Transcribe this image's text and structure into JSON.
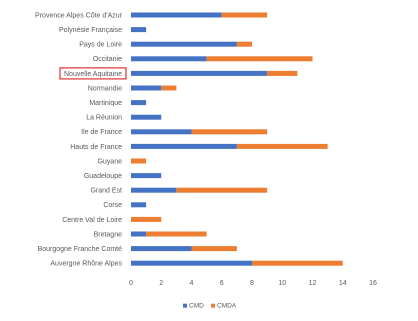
{
  "chart_data": {
    "type": "bar",
    "orientation": "horizontal",
    "stacked": true,
    "categories": [
      "Provence Alpes Côte d'Azur",
      "Polynésie Française",
      "Pays de Loire",
      "Occitanie",
      "Nouvelle Aquitaine",
      "Normandie",
      "Martinique",
      "La Réunion",
      "Ile de France",
      "Hauts de France",
      "Guyane",
      "Guadeloupe",
      "Grand Est",
      "Corse",
      "Centre Val de Loire",
      "Bretagne",
      "Bourgogne Franche Comté",
      "Auvergne Rhône Alpes"
    ],
    "series": [
      {
        "name": "CMD",
        "color": "#4472C4",
        "values": [
          6,
          1,
          7,
          5,
          9,
          2,
          1,
          2,
          4,
          7,
          0,
          2,
          3,
          1,
          0,
          1,
          4,
          8
        ]
      },
      {
        "name": "CMDA",
        "color": "#ED7D31",
        "values": [
          3,
          0,
          1,
          7,
          2,
          1,
          0,
          0,
          5,
          6,
          1,
          0,
          6,
          0,
          2,
          4,
          3,
          6
        ]
      }
    ],
    "highlighted_category": "Nouvelle Aquitaine",
    "highlight_color": "#E03030",
    "xlim": [
      0,
      16
    ],
    "xticks": [
      "0",
      "2",
      "4",
      "6",
      "8",
      "10",
      "12",
      "14",
      "16"
    ],
    "grid": false,
    "legend_position": "bottom"
  }
}
